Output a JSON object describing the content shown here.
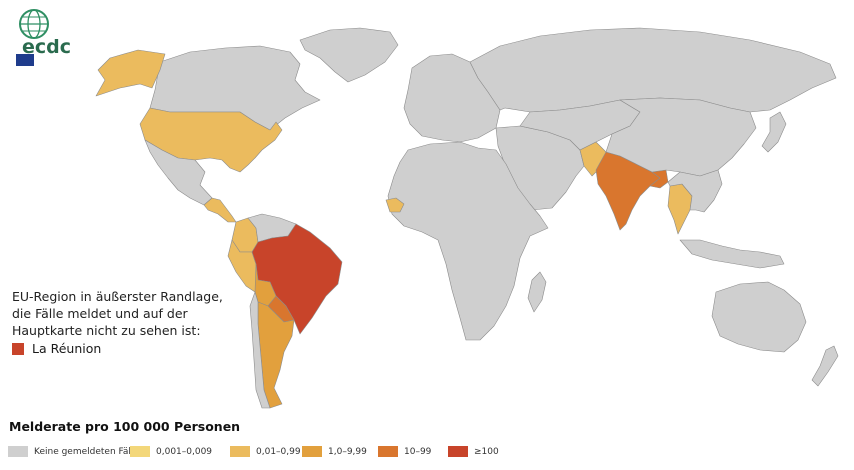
{
  "logo": {
    "text": "ecdc"
  },
  "outermost_region": {
    "lines": [
      "EU-Region in äußerster Randlage,",
      "die Fälle meldet und auf der",
      "Hauptkarte nicht zu sehen ist:"
    ],
    "item_label": "La Réunion",
    "item_color": "#c8442a"
  },
  "legend": {
    "title": "Melderate pro 100 000 Personen",
    "items": [
      {
        "label": "Keine gemeldeten Fälle",
        "color": "#cfcfcf"
      },
      {
        "label": "0,001–0,009",
        "color": "#f3d77a"
      },
      {
        "label": "0,01–0,99",
        "color": "#ebbb5e"
      },
      {
        "label": "1,0–9,99",
        "color": "#e2a03d"
      },
      {
        "label": "10–99",
        "color": "#d9762e"
      },
      {
        "label": "≥100",
        "color": "#c8442a"
      }
    ]
  },
  "map": {
    "ocean_color": "#ffffff",
    "border_color": "#8c8c8c",
    "regions": [
      {
        "name": "Greenland",
        "category": 0
      },
      {
        "name": "Canada",
        "category": 0
      },
      {
        "name": "Alaska",
        "category": 2
      },
      {
        "name": "United States",
        "category": 2
      },
      {
        "name": "Mexico",
        "category": 0
      },
      {
        "name": "Central America",
        "category": 2
      },
      {
        "name": "Colombia",
        "category": 2
      },
      {
        "name": "Venezuela",
        "category": 0
      },
      {
        "name": "Ecuador-Peru",
        "category": 2
      },
      {
        "name": "Brazil",
        "category": 5
      },
      {
        "name": "Bolivia",
        "category": 3
      },
      {
        "name": "Paraguay",
        "category": 4
      },
      {
        "name": "Argentina",
        "category": 3
      },
      {
        "name": "Chile",
        "category": 0
      },
      {
        "name": "Europe",
        "category": 0
      },
      {
        "name": "Russia",
        "category": 0
      },
      {
        "name": "Middle East",
        "category": 0
      },
      {
        "name": "Africa",
        "category": 0
      },
      {
        "name": "Senegal",
        "category": 2
      },
      {
        "name": "Madagascar",
        "category": 0
      },
      {
        "name": "Central Asia",
        "category": 0
      },
      {
        "name": "Pakistan",
        "category": 2
      },
      {
        "name": "India",
        "category": 4
      },
      {
        "name": "Bangladesh",
        "category": 4
      },
      {
        "name": "China",
        "category": 0
      },
      {
        "name": "Thailand",
        "category": 2
      },
      {
        "name": "Southeast Asia",
        "category": 0
      },
      {
        "name": "Japan",
        "category": 0
      },
      {
        "name": "Indonesia",
        "category": 0
      },
      {
        "name": "Australia",
        "category": 0
      },
      {
        "name": "New Zealand",
        "category": 0
      }
    ]
  }
}
